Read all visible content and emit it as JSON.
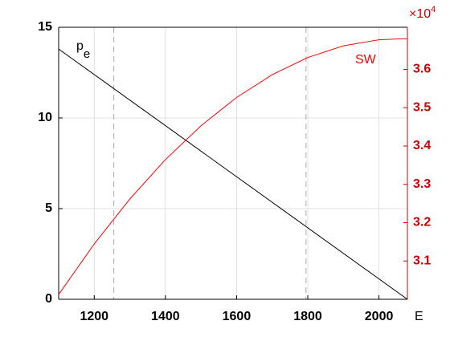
{
  "chart_data": {
    "type": "line",
    "xlabel": "E",
    "xlim": [
      1100,
      2080
    ],
    "xticks": [
      1200,
      1400,
      1600,
      1800,
      2000
    ],
    "ylim": [
      0,
      15
    ],
    "yticks": [
      0,
      5,
      10,
      15
    ],
    "y2lim": [
      30000,
      37100
    ],
    "y2ticks": [
      {
        "value": 31000,
        "label": "3.1"
      },
      {
        "value": 32000,
        "label": "3.2"
      },
      {
        "value": 33000,
        "label": "3.3"
      },
      {
        "value": 34000,
        "label": "3.4"
      },
      {
        "value": 35000,
        "label": "3.5"
      },
      {
        "value": 36000,
        "label": "3.6"
      }
    ],
    "y2_exponent_base": "×10",
    "y2_exponent": "4",
    "y2_color": "#cc0000",
    "grid": true,
    "vlines": [
      1255,
      1795
    ],
    "series": [
      {
        "name": "p",
        "name_subscript": "e",
        "color": "#000000",
        "x": [
          1100,
          2080
        ],
        "values": [
          13.8,
          0
        ]
      },
      {
        "name": "SW",
        "color": "#ff0000",
        "axis": "y2",
        "x": [
          1100,
          1200,
          1300,
          1400,
          1500,
          1600,
          1700,
          1800,
          1900,
          2000,
          2060,
          2080
        ],
        "values": [
          30125,
          31445,
          32618,
          33646,
          34530,
          35268,
          35862,
          36311,
          36615,
          36774,
          36800,
          36800
        ]
      }
    ]
  }
}
